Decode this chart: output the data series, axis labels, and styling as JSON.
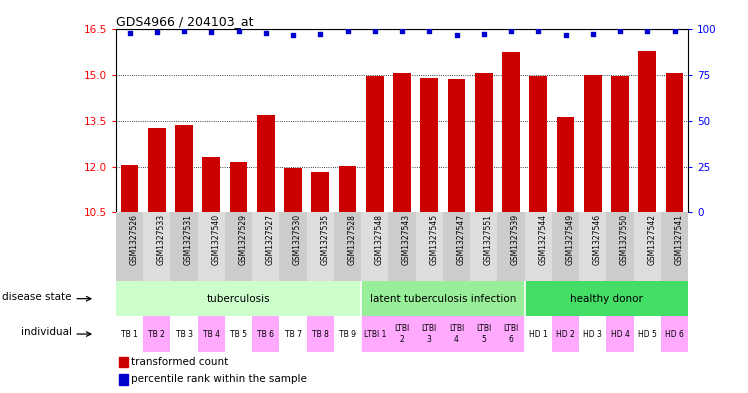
{
  "title": "GDS4966 / 204103_at",
  "samples": [
    "GSM1327526",
    "GSM1327533",
    "GSM1327531",
    "GSM1327540",
    "GSM1327529",
    "GSM1327527",
    "GSM1327530",
    "GSM1327535",
    "GSM1327528",
    "GSM1327548",
    "GSM1327543",
    "GSM1327545",
    "GSM1327547",
    "GSM1327551",
    "GSM1327539",
    "GSM1327544",
    "GSM1327549",
    "GSM1327546",
    "GSM1327550",
    "GSM1327542",
    "GSM1327541"
  ],
  "bar_values": [
    12.05,
    13.25,
    13.35,
    12.3,
    12.15,
    13.68,
    11.95,
    11.82,
    12.02,
    14.98,
    15.08,
    14.92,
    14.88,
    15.08,
    15.75,
    14.98,
    13.62,
    15.0,
    14.98,
    15.78,
    15.08
  ],
  "percentile_values": [
    16.38,
    16.42,
    16.44,
    16.43,
    16.44,
    16.38,
    16.32,
    16.36,
    16.44,
    16.44,
    16.44,
    16.44,
    16.32,
    16.36,
    16.44,
    16.44,
    16.32,
    16.36,
    16.44,
    16.44,
    16.44
  ],
  "ylim_left": [
    10.5,
    16.5
  ],
  "yticks_left": [
    10.5,
    12.0,
    13.5,
    15.0,
    16.5
  ],
  "ylim_right": [
    0,
    100
  ],
  "yticks_right": [
    0,
    25,
    50,
    75,
    100
  ],
  "bar_color": "#cc0000",
  "dot_color": "#0000cc",
  "grid_values": [
    12.0,
    13.5,
    15.0
  ],
  "disease_groups": [
    {
      "label": "tuberculosis",
      "start": 0,
      "end": 8,
      "color": "#ccffcc"
    },
    {
      "label": "latent tuberculosis infection",
      "start": 9,
      "end": 14,
      "color": "#99ee99"
    },
    {
      "label": "healthy donor",
      "start": 15,
      "end": 20,
      "color": "#44dd66"
    }
  ],
  "indiv_labels": [
    "TB 1",
    "TB 2",
    "TB 3",
    "TB 4",
    "TB 5",
    "TB 6",
    "TB 7",
    "TB 8",
    "TB 9",
    "LTBI 1",
    "LTBI\n2",
    "LTBI\n3",
    "LTBI\n4",
    "LTBI\n5",
    "LTBI\n6",
    "HD 1",
    "HD 2",
    "HD 3",
    "HD 4",
    "HD 5",
    "HD 6"
  ],
  "indiv_colors": [
    "#ffffff",
    "#ffaaff",
    "#ffffff",
    "#ffaaff",
    "#ffffff",
    "#ffaaff",
    "#ffffff",
    "#ffaaff",
    "#ffffff",
    "#ffaaff",
    "#ffaaff",
    "#ffaaff",
    "#ffaaff",
    "#ffaaff",
    "#ffaaff",
    "#ffffff",
    "#ffaaff",
    "#ffffff",
    "#ffaaff",
    "#ffffff",
    "#ffaaff"
  ],
  "sample_bg_colors": [
    "#cccccc",
    "#dddddd"
  ]
}
